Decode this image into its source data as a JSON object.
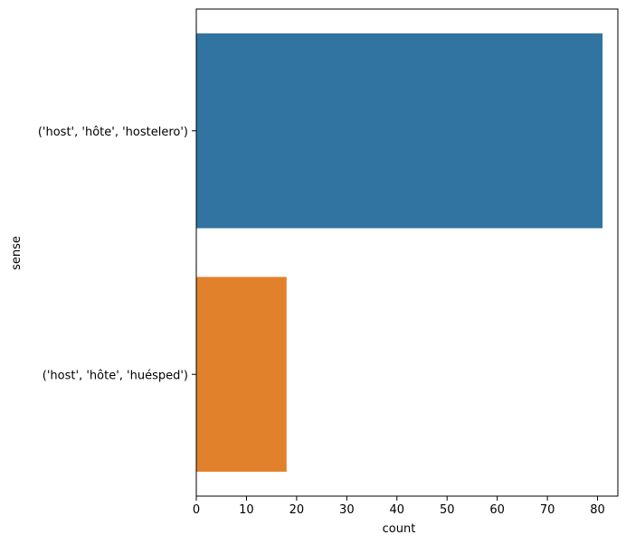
{
  "chart_data": {
    "type": "bar",
    "orientation": "horizontal",
    "title": "",
    "xlabel": "count",
    "ylabel": "sense",
    "xlim": [
      0,
      84.05
    ],
    "x_ticks": [
      0,
      10,
      20,
      30,
      40,
      50,
      60,
      70,
      80
    ],
    "categories": [
      "('host', 'hôte', 'hostelero')",
      "('host', 'hôte', 'huésped')"
    ],
    "values": [
      81,
      18
    ],
    "colors": [
      "#3274a1",
      "#e1812c"
    ],
    "grid": false,
    "legend": "none"
  }
}
